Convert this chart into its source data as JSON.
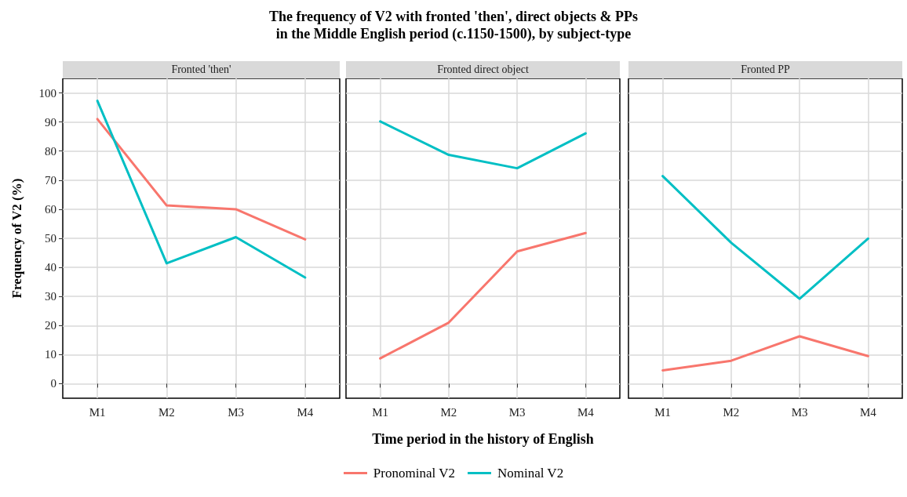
{
  "chart_data": [
    {
      "type": "line",
      "title": "The frequency of V2 with fronted 'then', direct objects & PPs\nin the Middle English period (c.1150-1500), by subject-type",
      "subtitle": "Fronted 'then'",
      "ylabel": "Frequency of V2 (%)",
      "categories": [
        "M1",
        "M2",
        "M3",
        "M4"
      ],
      "series": [
        {
          "name": "Pronominal V2",
          "color": "#f8766d",
          "values": [
            91,
            61.3,
            60,
            49.6
          ]
        },
        {
          "name": "Nominal V2",
          "color": "#00bfc4",
          "values": [
            97.3,
            41.4,
            50.4,
            36.5
          ]
        }
      ],
      "ylim": [
        -5,
        105
      ],
      "yticks": [
        0,
        10,
        20,
        30,
        40,
        50,
        60,
        70,
        80,
        90,
        100
      ],
      "grid": true,
      "legend": "bottom",
      "marker": "none",
      "line_style": "solid"
    },
    {
      "type": "line",
      "subtitle": "Fronted direct object",
      "xlabel": "Time period in the history of English",
      "categories": [
        "M1",
        "M2",
        "M3",
        "M4"
      ],
      "series": [
        {
          "color": "#f8766d",
          "values": [
            8.7,
            21,
            45.5,
            51.8
          ]
        },
        {
          "color": "#00bfc4",
          "values": [
            90.2,
            78.7,
            74.1,
            86.1
          ]
        }
      ],
      "ylim": [
        -5,
        105
      ],
      "yticks": [
        0,
        10,
        20,
        30,
        40,
        50,
        60,
        70,
        80,
        90,
        100
      ],
      "grid": true,
      "tick_labels": "x",
      "marker": "none",
      "line_style": "solid"
    },
    {
      "type": "line",
      "subtitle": "Fronted PP",
      "categories": [
        "M1",
        "M2",
        "M3",
        "M4"
      ],
      "series": [
        {
          "color": "#f8766d",
          "values": [
            4.6,
            7.9,
            16.3,
            9.5
          ]
        },
        {
          "color": "#00bfc4",
          "values": [
            71.4,
            48.5,
            29.2,
            49.9
          ]
        }
      ],
      "ylim": [
        -5,
        105
      ],
      "yticks": [
        0,
        10,
        20,
        30,
        40,
        50,
        60,
        70,
        80,
        90,
        100
      ],
      "grid": true,
      "tick_labels": "x",
      "marker": "none",
      "line_style": "solid"
    }
  ]
}
